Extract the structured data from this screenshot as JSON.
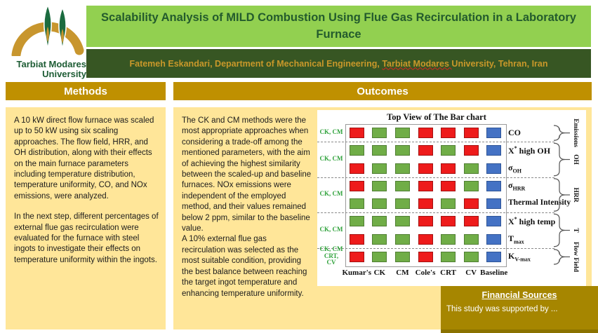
{
  "header": {
    "title": "Scalability Analysis of MILD Combustion Using Flue Gas Recirculation in a Laboratory Furnace",
    "author_prefix": "Fatemeh Eskandari, Department of Mechanical Engineering, ",
    "author_university": "Tarbiat Modares ",
    "author_suffix": "University, Tehran, Iran",
    "logo_line1": "Tarbiat Modares",
    "logo_line2": "University"
  },
  "methods": {
    "heading": "Methods",
    "paragraphs": [
      "A 10 kW direct flow furnace was scaled up to 50 kW using six scaling approaches. The flow field, HRR, and OH distribution, along with their effects on the main furnace parameters including temperature distribution, temperature uniformity, CO, and NOx emissions, were analyzed.",
      "In the next step, different percentages of external flue gas recirculation were evaluated for the furnace with steel ingots to investigate their effects on temperature uniformity within the ingots."
    ]
  },
  "outcomes": {
    "heading": "Outcomes",
    "paragraphs": [
      "The CK and CM methods were the most appropriate approaches when considering a trade-off among the mentioned parameters, with the aim of achieving the highest similarity between the scaled-up and baseline furnaces. NOx emissions were independent of the employed method, and their values remained below 2 ppm, similar to the baseline value.",
      "A 10% external flue gas recirculation was selected as the most suitable condition, providing the best balance between reaching the target ingot temperature and enhancing temperature uniformity."
    ]
  },
  "financial": {
    "heading": "Financial Sources",
    "body": "This study was supported by ..."
  },
  "colors": {
    "light_green": "#92D050",
    "dark_green": "#375623",
    "gold_header": "#BF9000",
    "tan_panel": "#FFE699",
    "financial_gold": "#A68600",
    "author_text": "#C9982A"
  },
  "chart_data": {
    "type": "heatmap",
    "title": "Top View of The Bar chart",
    "columns": [
      "Kumar's",
      "CK",
      "CM",
      "Cole's",
      "CRT",
      "CV",
      "Baseline"
    ],
    "rows": [
      {
        "label": {
          "pre": "CO"
        },
        "cells": [
          "red",
          "green",
          "green",
          "red",
          "red",
          "red",
          "blue"
        ]
      },
      {
        "label": {
          "pre": "X",
          "sup": "*",
          "post": " high OH"
        },
        "cells": [
          "green",
          "green",
          "green",
          "red",
          "green",
          "red",
          "blue"
        ]
      },
      {
        "label": {
          "pre": "σ",
          "sub": "OH"
        },
        "cells": [
          "red",
          "green",
          "green",
          "red",
          "red",
          "green",
          "blue"
        ]
      },
      {
        "label": {
          "pre": "σ",
          "sub": "HRR"
        },
        "cells": [
          "red",
          "green",
          "green",
          "red",
          "red",
          "green",
          "blue"
        ]
      },
      {
        "label": {
          "pre": "Thermal Intensity"
        },
        "cells": [
          "green",
          "green",
          "green",
          "red",
          "green",
          "red",
          "blue"
        ]
      },
      {
        "label": {
          "pre": "X",
          "sup": "*",
          "post": " high temp"
        },
        "cells": [
          "green",
          "green",
          "green",
          "red",
          "red",
          "red",
          "blue"
        ]
      },
      {
        "label": {
          "pre": "T",
          "sub": "max"
        },
        "cells": [
          "red",
          "green",
          "green",
          "red",
          "green",
          "green",
          "blue"
        ]
      },
      {
        "label": {
          "pre": "K",
          "sub": "V-max"
        },
        "cells": [
          "red",
          "green",
          "green",
          "red",
          "green",
          "green",
          "blue"
        ]
      }
    ],
    "groups": [
      {
        "label": "Emissions",
        "rowStart": 0,
        "rowEnd": 0
      },
      {
        "label": "OH",
        "rowStart": 1,
        "rowEnd": 2
      },
      {
        "label": "HRR",
        "rowStart": 3,
        "rowEnd": 4
      },
      {
        "label": "T",
        "rowStart": 5,
        "rowEnd": 6
      },
      {
        "label": "Flow Field",
        "rowStart": 7,
        "rowEnd": 7
      }
    ],
    "left_annotations": [
      {
        "lines": [
          "CK, CM"
        ],
        "row": 0
      },
      {
        "lines": [
          "CK, CM"
        ],
        "rows": [
          1,
          2
        ]
      },
      {
        "lines": [
          "CK, CM"
        ],
        "rows": [
          3,
          4
        ]
      },
      {
        "lines": [
          "CK, CM"
        ],
        "rows": [
          5,
          6
        ]
      },
      {
        "lines": [
          "CK, CM",
          "CRT,",
          "CV"
        ],
        "row": 7
      }
    ],
    "dashed_after_rows": [
      0,
      2,
      4,
      6
    ],
    "cell_colors": {
      "red": {
        "fill": "#EE1B1B",
        "border": "#A31111"
      },
      "green": {
        "fill": "#70AD47",
        "border": "#507E33"
      },
      "blue": {
        "fill": "#4472C4",
        "border": "#2F5597"
      }
    }
  }
}
